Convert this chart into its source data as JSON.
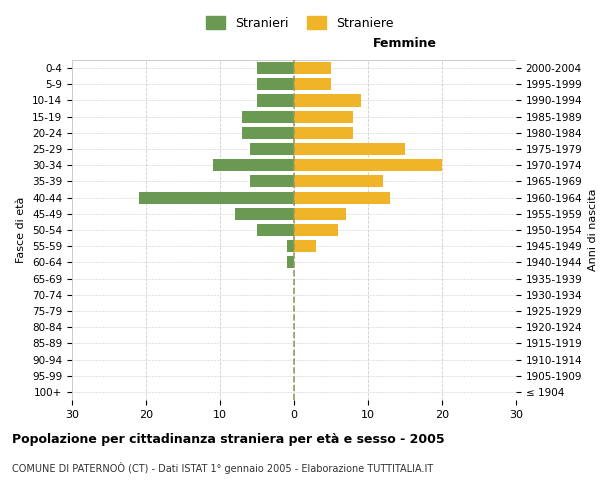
{
  "age_groups": [
    "100+",
    "95-99",
    "90-94",
    "85-89",
    "80-84",
    "75-79",
    "70-74",
    "65-69",
    "60-64",
    "55-59",
    "50-54",
    "45-49",
    "40-44",
    "35-39",
    "30-34",
    "25-29",
    "20-24",
    "15-19",
    "10-14",
    "5-9",
    "0-4"
  ],
  "birth_years": [
    "≤ 1904",
    "1905-1909",
    "1910-1914",
    "1915-1919",
    "1920-1924",
    "1925-1929",
    "1930-1934",
    "1935-1939",
    "1940-1944",
    "1945-1949",
    "1950-1954",
    "1955-1959",
    "1960-1964",
    "1965-1969",
    "1970-1974",
    "1975-1979",
    "1980-1984",
    "1985-1989",
    "1990-1994",
    "1995-1999",
    "2000-2004"
  ],
  "males": [
    0,
    0,
    0,
    0,
    0,
    0,
    0,
    0,
    1,
    1,
    5,
    8,
    21,
    6,
    11,
    6,
    7,
    7,
    5,
    5,
    5
  ],
  "females": [
    0,
    0,
    0,
    0,
    0,
    0,
    0,
    0,
    0,
    3,
    6,
    7,
    13,
    12,
    20,
    15,
    8,
    8,
    9,
    5,
    5
  ],
  "male_color": "#6a9a52",
  "female_color": "#f0b429",
  "xlim": 30,
  "title": "Popolazione per cittadinanza straniera per età e sesso - 2005",
  "subtitle": "COMUNE DI PATERNOÒ (CT) - Dati ISTAT 1° gennaio 2005 - Elaborazione TUTTITALIA.IT",
  "legend_male": "Stranieri",
  "legend_female": "Straniere",
  "xlabel_right": "Femmine",
  "ylabel_left": "Fasce di età",
  "ylabel_right": "Anni di nascita",
  "bg_color": "#ffffff",
  "grid_color": "#cccccc",
  "center_line_color": "#999966"
}
